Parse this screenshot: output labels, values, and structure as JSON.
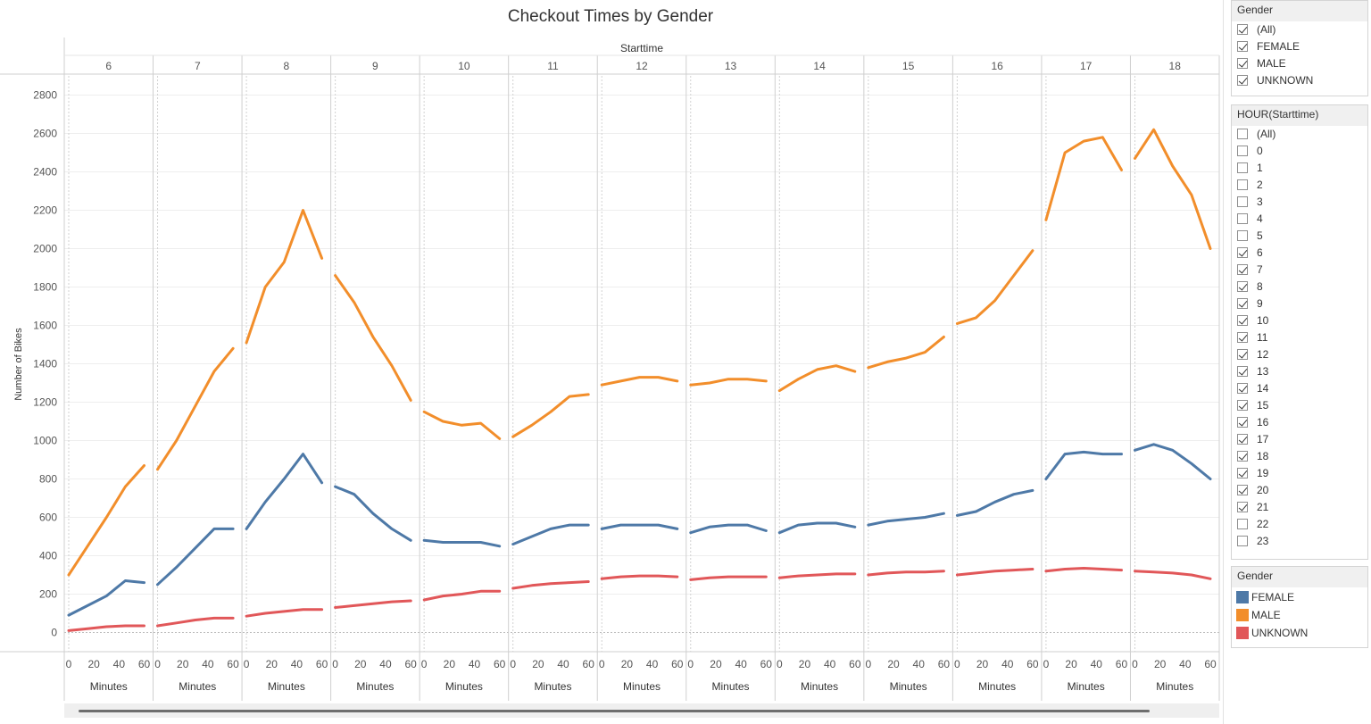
{
  "chart_data": {
    "type": "line",
    "title": "Checkout Times by Gender",
    "top_header": "Starttime",
    "panels": [
      "6",
      "7",
      "8",
      "9",
      "10",
      "11",
      "12",
      "13",
      "14",
      "15",
      "16",
      "17",
      "18"
    ],
    "ylabel": "Number of Bikes",
    "ylim": [
      -100,
      2900
    ],
    "yticks": [
      0,
      200,
      400,
      600,
      800,
      1000,
      1200,
      1400,
      1600,
      1800,
      2000,
      2200,
      2400,
      2600,
      2800
    ],
    "xlabel_per_panel": "Minutes",
    "xticks": [
      0,
      20,
      40,
      60
    ],
    "xlim": [
      0,
      60
    ],
    "grid": "horizontal",
    "series": [
      {
        "name": "MALE",
        "color": "#f28e2b",
        "panel_values": [
          [
            300,
            450,
            600,
            760,
            870
          ],
          [
            850,
            1000,
            1180,
            1360,
            1480
          ],
          [
            1510,
            1800,
            1930,
            2200,
            1950
          ],
          [
            1860,
            1720,
            1540,
            1390,
            1210
          ],
          [
            1150,
            1100,
            1080,
            1090,
            1010
          ],
          [
            1020,
            1080,
            1150,
            1230,
            1240
          ],
          [
            1290,
            1310,
            1330,
            1330,
            1310
          ],
          [
            1290,
            1300,
            1320,
            1320,
            1310
          ],
          [
            1260,
            1320,
            1370,
            1390,
            1360
          ],
          [
            1380,
            1410,
            1430,
            1460,
            1540
          ],
          [
            1610,
            1640,
            1730,
            1860,
            1990
          ],
          [
            2150,
            2500,
            2560,
            2580,
            2410
          ],
          [
            2470,
            2620,
            2430,
            2280,
            2000
          ]
        ]
      },
      {
        "name": "FEMALE",
        "color": "#4e79a7",
        "panel_values": [
          [
            90,
            140,
            190,
            270,
            260
          ],
          [
            250,
            340,
            440,
            540,
            540
          ],
          [
            540,
            680,
            800,
            930,
            780
          ],
          [
            760,
            720,
            620,
            540,
            480
          ],
          [
            480,
            470,
            470,
            470,
            450
          ],
          [
            460,
            500,
            540,
            560,
            560
          ],
          [
            540,
            560,
            560,
            560,
            540
          ],
          [
            520,
            550,
            560,
            560,
            530
          ],
          [
            520,
            560,
            570,
            570,
            550
          ],
          [
            560,
            580,
            590,
            600,
            620
          ],
          [
            610,
            630,
            680,
            720,
            740
          ],
          [
            800,
            930,
            940,
            930,
            930
          ],
          [
            950,
            980,
            950,
            880,
            800
          ]
        ]
      },
      {
        "name": "UNKNOWN",
        "color": "#e15759",
        "panel_values": [
          [
            10,
            20,
            30,
            35,
            35
          ],
          [
            35,
            50,
            65,
            75,
            75
          ],
          [
            85,
            100,
            110,
            120,
            120
          ],
          [
            130,
            140,
            150,
            160,
            165
          ],
          [
            170,
            190,
            200,
            215,
            215
          ],
          [
            230,
            245,
            255,
            260,
            265
          ],
          [
            280,
            290,
            295,
            295,
            290
          ],
          [
            275,
            285,
            290,
            290,
            290
          ],
          [
            285,
            295,
            300,
            305,
            305
          ],
          [
            300,
            310,
            315,
            315,
            320
          ],
          [
            300,
            310,
            320,
            325,
            330
          ],
          [
            320,
            330,
            335,
            330,
            325
          ],
          [
            320,
            315,
            310,
            300,
            280
          ]
        ]
      }
    ]
  },
  "filters": {
    "gender": {
      "title": "Gender",
      "items": [
        {
          "label": "(All)",
          "checked": true
        },
        {
          "label": "FEMALE",
          "checked": true
        },
        {
          "label": "MALE",
          "checked": true
        },
        {
          "label": "UNKNOWN",
          "checked": true
        }
      ]
    },
    "hour": {
      "title": "HOUR(Starttime)",
      "items": [
        {
          "label": "(All)",
          "checked": false
        },
        {
          "label": "0",
          "checked": false
        },
        {
          "label": "1",
          "checked": false
        },
        {
          "label": "2",
          "checked": false
        },
        {
          "label": "3",
          "checked": false
        },
        {
          "label": "4",
          "checked": false
        },
        {
          "label": "5",
          "checked": false
        },
        {
          "label": "6",
          "checked": true
        },
        {
          "label": "7",
          "checked": true
        },
        {
          "label": "8",
          "checked": true
        },
        {
          "label": "9",
          "checked": true
        },
        {
          "label": "10",
          "checked": true
        },
        {
          "label": "11",
          "checked": true
        },
        {
          "label": "12",
          "checked": true
        },
        {
          "label": "13",
          "checked": true
        },
        {
          "label": "14",
          "checked": true
        },
        {
          "label": "15",
          "checked": true
        },
        {
          "label": "16",
          "checked": true
        },
        {
          "label": "17",
          "checked": true
        },
        {
          "label": "18",
          "checked": true
        },
        {
          "label": "19",
          "checked": true
        },
        {
          "label": "20",
          "checked": true
        },
        {
          "label": "21",
          "checked": true
        },
        {
          "label": "22",
          "checked": false
        },
        {
          "label": "23",
          "checked": false
        }
      ]
    }
  },
  "legend": {
    "title": "Gender",
    "items": [
      {
        "label": "FEMALE",
        "color": "#4e79a7"
      },
      {
        "label": "MALE",
        "color": "#f28e2b"
      },
      {
        "label": "UNKNOWN",
        "color": "#e15759"
      }
    ]
  }
}
